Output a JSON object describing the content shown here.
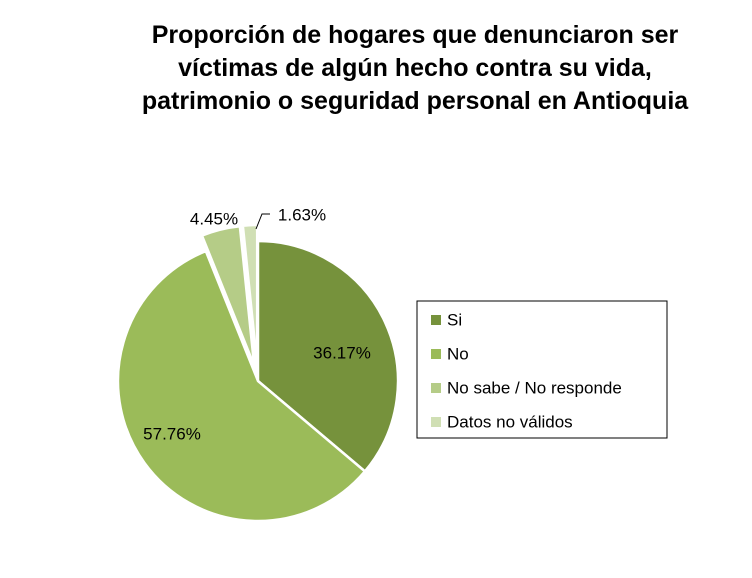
{
  "chart_data": {
    "type": "pie",
    "title": "Proporción de hogares que denunciaron ser víctimas de algún hecho contra su vida, patrimonio o seguridad personal en Antioquia",
    "categories": [
      "Si",
      "No",
      "No sabe / No responde",
      "Datos no válidos"
    ],
    "values": [
      36.17,
      57.76,
      4.45,
      1.63
    ],
    "data_labels": [
      "36.17%",
      "57.76%",
      "4.45%",
      "1.63%"
    ],
    "colors": [
      "#76923C",
      "#9BBB59",
      "#B5CC87",
      "#D0DFB4"
    ],
    "exploded": [
      false,
      false,
      true,
      true
    ],
    "legend_position": "right"
  }
}
